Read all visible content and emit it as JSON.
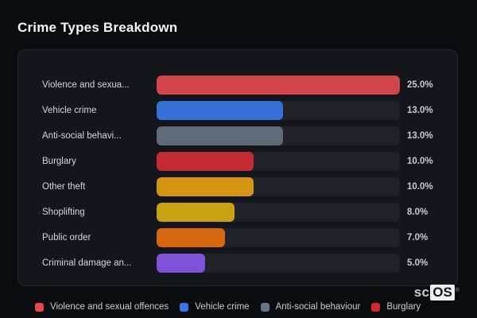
{
  "title": "Crime Types Breakdown",
  "chart_data": {
    "type": "bar",
    "orientation": "horizontal",
    "title": "Crime Types Breakdown",
    "categories": [
      "Violence and sexua...",
      "Vehicle crime",
      "Anti-social behavi...",
      "Burglary",
      "Other theft",
      "Shoplifting",
      "Public order",
      "Criminal damage an..."
    ],
    "values": [
      25.0,
      13.0,
      13.0,
      10.0,
      10.0,
      8.0,
      7.0,
      5.0
    ],
    "value_labels": [
      "25.0%",
      "13.0%",
      "13.0%",
      "10.0%",
      "10.0%",
      "8.0%",
      "7.0%",
      "5.0%"
    ],
    "bar_colors": [
      "#d2464b",
      "#3570d6",
      "#5d6a78",
      "#c22b31",
      "#d69413",
      "#c9a213",
      "#d4670f",
      "#7e52d8"
    ],
    "axis_max_value": 25.0,
    "xlim": [
      0,
      25
    ],
    "grid": false,
    "legend_position": "bottom",
    "legend": [
      {
        "label": "Violence and sexual offences",
        "color": "#e4474c"
      },
      {
        "label": "Vehicle crime",
        "color": "#3b76e8"
      },
      {
        "label": "Anti-social behaviour",
        "color": "#64748b"
      },
      {
        "label": "Burglary",
        "color": "#d02a30"
      }
    ]
  },
  "colors": {
    "page_bg": "#0b0c10",
    "card_bg": "#15161c",
    "card_border": "#25262d",
    "bar_track": "#212229",
    "label_text": "#d3d6dc",
    "value_text": "#c7cad1",
    "title_text": "#f3f4f6"
  },
  "logo": {
    "prefix": "sc",
    "boxed": "OS",
    "registered": "®"
  }
}
